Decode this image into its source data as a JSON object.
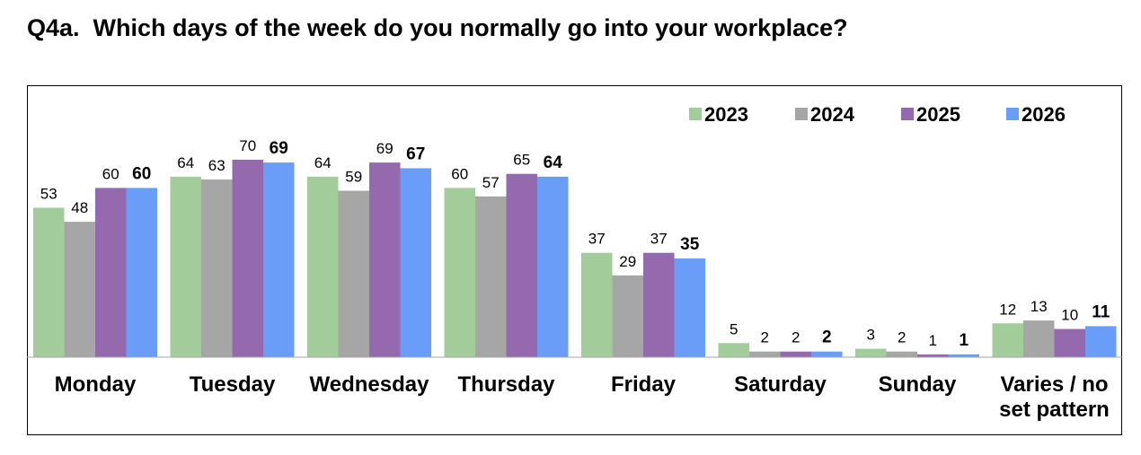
{
  "title": "Q4a.  Which days of the week do you normally go into your workplace?",
  "chart_data": {
    "type": "bar",
    "title": "Q4a.  Which days of the week do you normally go into your workplace?",
    "categories": [
      [
        "Monday"
      ],
      [
        "Tuesday"
      ],
      [
        "Wednesday"
      ],
      [
        "Thursday"
      ],
      [
        "Friday"
      ],
      [
        "Saturday"
      ],
      [
        "Sunday"
      ],
      [
        "Varies / no",
        "set pattern"
      ]
    ],
    "series": [
      {
        "name": "2023",
        "color": "#a2cc9a",
        "values": [
          53,
          64,
          64,
          60,
          37,
          5,
          3,
          12
        ]
      },
      {
        "name": "2024",
        "color": "#a6a6a6",
        "values": [
          48,
          63,
          59,
          57,
          29,
          2,
          2,
          13
        ]
      },
      {
        "name": "2025",
        "color": "#9569ad",
        "values": [
          60,
          70,
          69,
          65,
          37,
          2,
          1,
          10
        ]
      },
      {
        "name": "2026",
        "color": "#6a9df8",
        "values": [
          60,
          69,
          67,
          64,
          35,
          2,
          1,
          11
        ]
      }
    ],
    "bold_series": "2026",
    "ylim": [
      0,
      70
    ],
    "xlabel": "",
    "ylabel": "",
    "grid": false,
    "legend_position": "top-right"
  }
}
